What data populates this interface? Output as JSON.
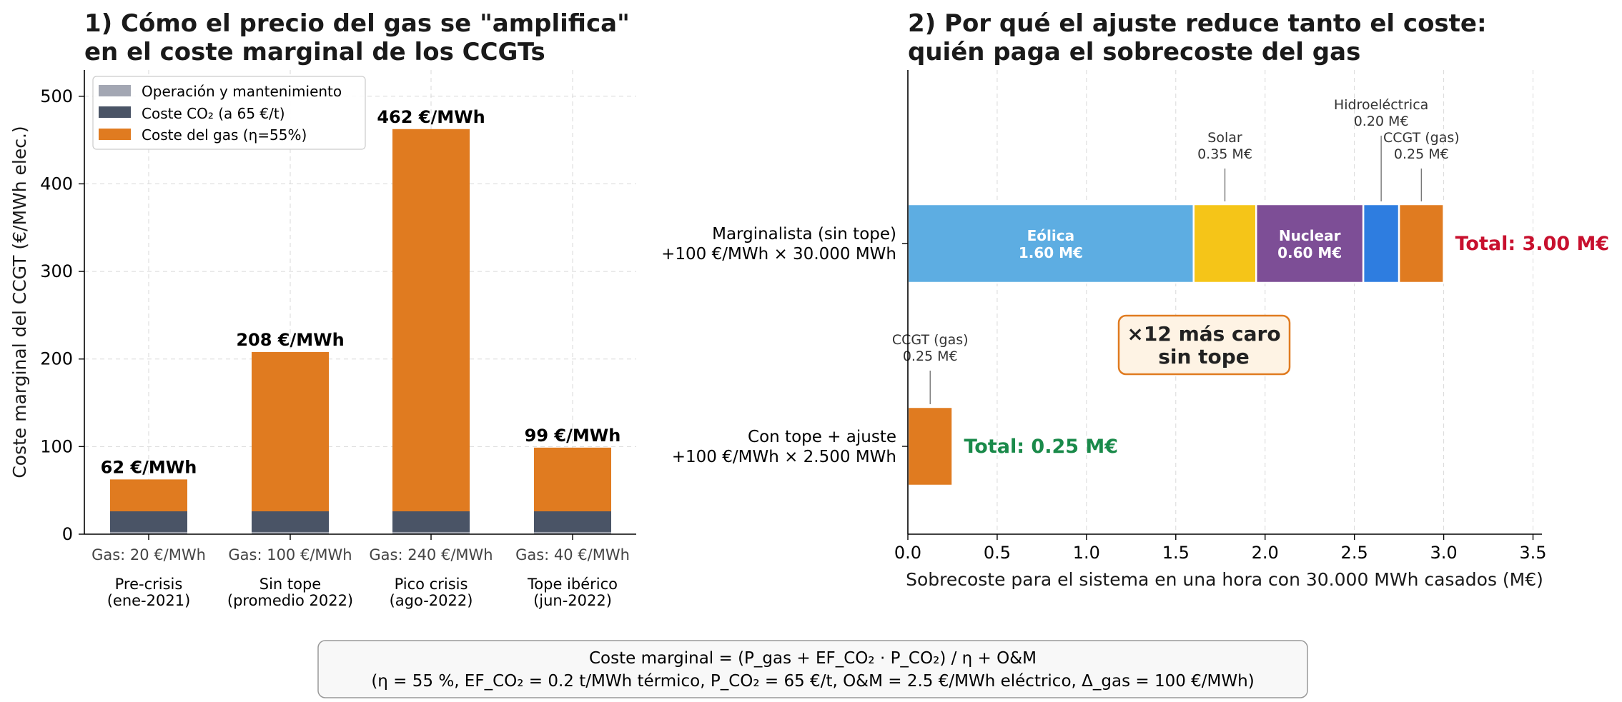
{
  "chart_data": [
    {
      "type": "bar",
      "stacked": true,
      "title_lines": [
        "1) Cómo el precio del gas se \"amplifica\"",
        "en el coste marginal de los CCGTs"
      ],
      "ylabel": "Coste marginal del CCGT  (€/MWh elec.)",
      "xlabel": "",
      "ylim": [
        0,
        530
      ],
      "yticks": [
        0,
        100,
        200,
        300,
        400,
        500
      ],
      "grid": true,
      "legend_position": "top-left",
      "categories": [
        {
          "gas": "Gas: 20 €/MWh",
          "line1": "Pre-crisis",
          "line2": "(ene-2021)",
          "total_label": "62 €/MWh"
        },
        {
          "gas": "Gas: 100 €/MWh",
          "line1": "Sin tope",
          "line2": "(promedio 2022)",
          "total_label": "208 €/MWh"
        },
        {
          "gas": "Gas: 240 €/MWh",
          "line1": "Pico crisis",
          "line2": "(ago-2022)",
          "total_label": "462 €/MWh"
        },
        {
          "gas": "Gas: 40 €/MWh",
          "line1": "Tope ibérico",
          "line2": "(jun-2022)",
          "total_label": "99 €/MWh"
        }
      ],
      "series": [
        {
          "name": "Operación y mantenimiento",
          "color": "#a3a7b3",
          "values": [
            2.5,
            2.5,
            2.5,
            2.5
          ]
        },
        {
          "name": "Coste CO₂ (a 65 €/t)",
          "color": "#4a5466",
          "values": [
            23.6,
            23.6,
            23.6,
            23.6
          ]
        },
        {
          "name": "Coste del gas (η=55%)",
          "color": "#e07b20",
          "values": [
            36.4,
            181.9,
            436.4,
            72.7
          ]
        }
      ]
    },
    {
      "type": "bar",
      "orientation": "horizontal",
      "stacked": true,
      "title_lines": [
        "2) Por qué el ajuste reduce tanto el coste:",
        "quién paga el sobrecoste del gas"
      ],
      "xlabel": "Sobrecoste para el sistema en una hora con 30.000 MWh casados  (M€)",
      "xlim": [
        0,
        3.55
      ],
      "xticks": [
        0.0,
        0.5,
        1.0,
        1.5,
        2.0,
        2.5,
        3.0,
        3.5
      ],
      "xtick_labels": [
        "0.0",
        "0.5",
        "1.0",
        "1.5",
        "2.0",
        "2.5",
        "3.0",
        "3.5"
      ],
      "grid": true,
      "rows": [
        {
          "label_line1": "Marginalista (sin tope)",
          "label_line2": "+100 €/MWh × 30.000 MWh",
          "total_label": "Total: 3.00 M€",
          "total_color": "#c8102e",
          "segments": [
            {
              "name": "Eólica",
              "value": 1.6,
              "value_label": "1.60 M€",
              "color": "#5dade2",
              "label_inside": true
            },
            {
              "name": "Solar",
              "value": 0.35,
              "value_label": "0.35 M€",
              "color": "#f5c518",
              "label_inside": false
            },
            {
              "name": "Nuclear",
              "value": 0.6,
              "value_label": "0.60 M€",
              "color": "#7d4e96",
              "label_inside": true
            },
            {
              "name": "Hidroeléctrica",
              "value": 0.2,
              "value_label": "0.20 M€",
              "color": "#2e7de0",
              "label_inside": false
            },
            {
              "name": "CCGT (gas)",
              "value": 0.25,
              "value_label": "0.25 M€",
              "color": "#e07b20",
              "label_inside": false
            }
          ]
        },
        {
          "label_line1": "Con tope + ajuste",
          "label_line2": "+100 €/MWh × 2.500 MWh",
          "total_label": "Total: 0.25 M€",
          "total_color": "#1a8a4a",
          "segments": [
            {
              "name": "CCGT (gas)",
              "value": 0.25,
              "value_label": "0.25 M€",
              "color": "#e07b20",
              "label_inside": false
            }
          ]
        }
      ],
      "callout_lines": [
        "×12 más caro",
        "sin tope"
      ]
    }
  ],
  "footer": {
    "line1": "Coste marginal  =  (P_gas  +  EF_CO₂ · P_CO₂) / η   +   O&M",
    "line2": "(η = 55 %,  EF_CO₂ = 0.2 t/MWh térmico,  P_CO₂ = 65 €/t,  O&M = 2.5 €/MWh eléctrico,  Δ_gas = 100 €/MWh)"
  }
}
